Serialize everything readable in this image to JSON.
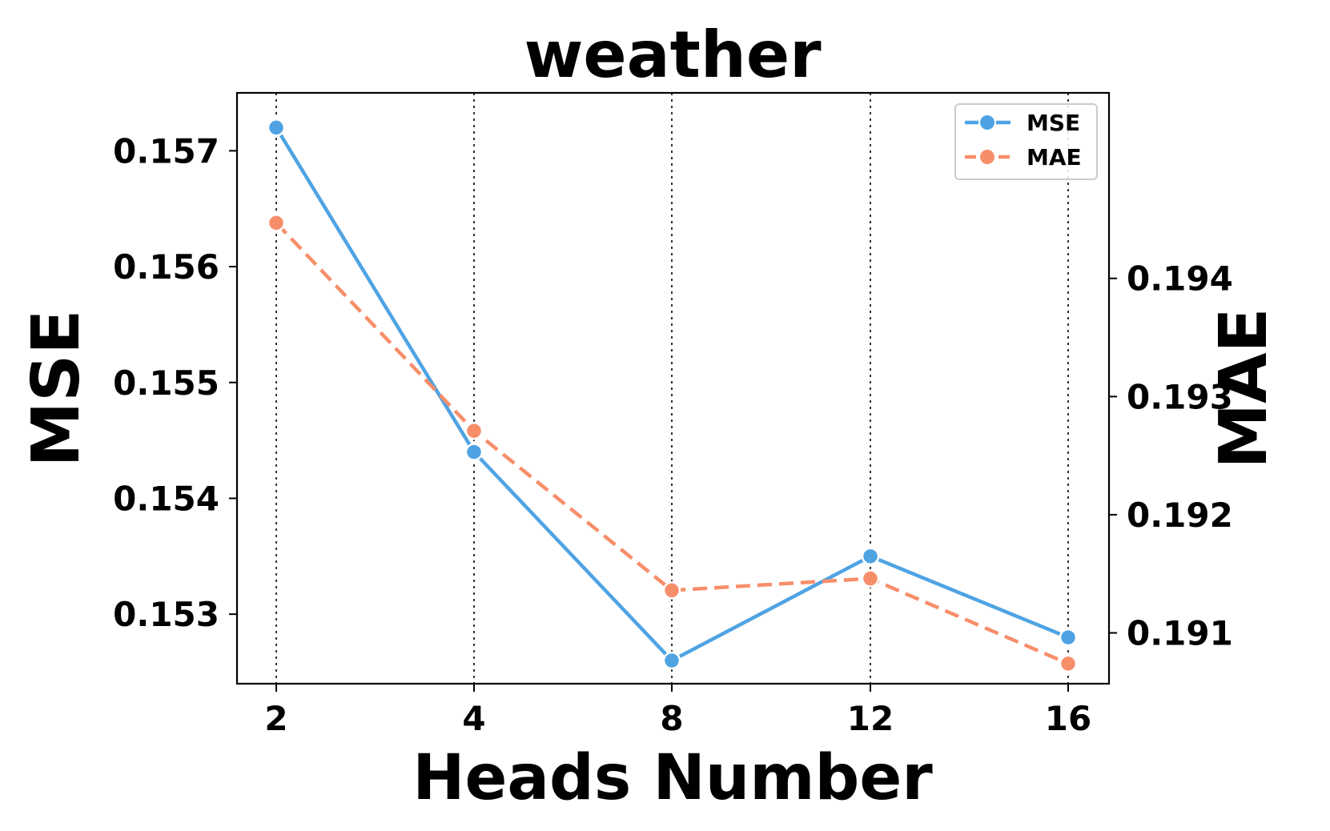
{
  "chart_data": {
    "type": "line",
    "title": "weather",
    "xlabel": "Heads Number",
    "ylabel": "MSE",
    "y2label": "MAE",
    "categories": [
      "2",
      "4",
      "8",
      "12",
      "16"
    ],
    "ylim": [
      0.1524,
      0.1575
    ],
    "y2lim": [
      0.19057,
      0.19557
    ],
    "yticks": [
      "0.153",
      "0.154",
      "0.155",
      "0.156",
      "0.157"
    ],
    "y2ticks": [
      "0.191",
      "0.192",
      "0.193",
      "0.194"
    ],
    "grid": "vertical dotted",
    "legend_position": "top-right",
    "series": [
      {
        "name": "MSE",
        "axis": "left",
        "values": [
          0.1572,
          0.1544,
          0.1526,
          0.1535,
          0.1528
        ],
        "color": "#4fa3e3",
        "line_style": "solid"
      },
      {
        "name": "MAE",
        "axis": "right",
        "values": [
          0.19447,
          0.19271,
          0.19136,
          0.19146,
          0.19074
        ],
        "color": "#f78e6a",
        "line_style": "dashed"
      }
    ]
  }
}
